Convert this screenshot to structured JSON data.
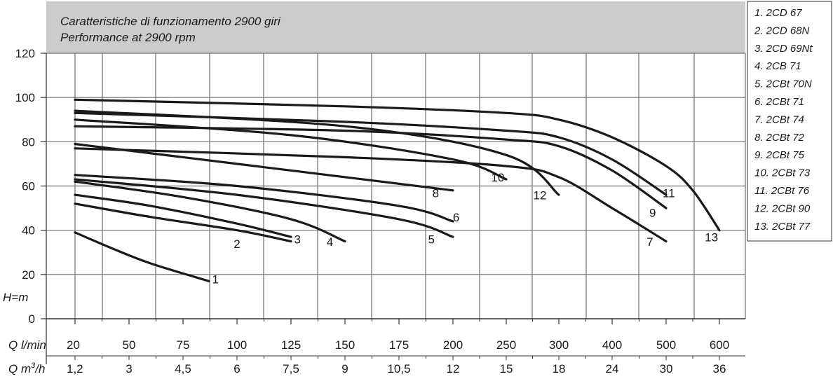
{
  "chart_data": {
    "type": "line",
    "title": "Caratteristiche di funzionamento 2900 giri",
    "subtitle": "Performance at 2900 rpm",
    "ylabel": "H=m",
    "ylim": [
      0,
      120
    ],
    "y_ticks": [
      "0",
      "20",
      "40",
      "60",
      "80",
      "100",
      "120"
    ],
    "x_axis_primary": {
      "label": "Q l/min",
      "ticks": [
        "20",
        "50",
        "75",
        "100",
        "125",
        "150",
        "175",
        "200",
        "250",
        "300",
        "400",
        "500",
        "600"
      ]
    },
    "x_axis_secondary": {
      "label_main": "Q m",
      "label_sup": "3",
      "label_tail": "/h",
      "ticks": [
        "1,2",
        "3",
        "4,5",
        "6",
        "7,5",
        "9",
        "10,5",
        "12",
        "15",
        "18",
        "24",
        "30",
        "36"
      ]
    },
    "legend_position": "right",
    "legend": [
      "1. 2CD 67",
      "2. 2CD 68N",
      "3. 2CD 69Nt",
      "4. 2CB 71",
      "5. 2CBt 70N",
      "6. 2CBt 71",
      "7. 2CBt 74",
      "8. 2CBt 72",
      "9. 2CBt 75",
      "10. 2CBt 73",
      "11. 2CBt 76",
      "12. 2CBt 90",
      "13. 2CBt 77"
    ],
    "x_unit_note": "x values are l/min, read on the non-linear primary axis",
    "series": [
      {
        "name": "1",
        "x": [
          20,
          40,
          60,
          87
        ],
        "y": [
          39,
          32,
          25,
          17
        ]
      },
      {
        "name": "2",
        "x": [
          20,
          60,
          100,
          125
        ],
        "y": [
          52,
          46,
          40,
          35
        ]
      },
      {
        "name": "3",
        "x": [
          20,
          60,
          100,
          125
        ],
        "y": [
          56,
          51,
          43,
          37
        ]
      },
      {
        "name": "4",
        "x": [
          20,
          75,
          125,
          150
        ],
        "y": [
          62,
          55,
          45,
          35
        ]
      },
      {
        "name": "5",
        "x": [
          20,
          100,
          175,
          200
        ],
        "y": [
          63,
          56,
          45,
          37
        ]
      },
      {
        "name": "6",
        "x": [
          20,
          100,
          175,
          200
        ],
        "y": [
          65,
          60,
          51,
          44
        ]
      },
      {
        "name": "7",
        "x": [
          20,
          150,
          250,
          300,
          400,
          500
        ],
        "y": [
          77,
          73,
          69,
          64,
          50,
          35
        ]
      },
      {
        "name": "8",
        "x": [
          20,
          100,
          175,
          200
        ],
        "y": [
          79,
          70,
          61,
          58
        ]
      },
      {
        "name": "9",
        "x": [
          20,
          150,
          250,
          300,
          400,
          500
        ],
        "y": [
          87,
          85,
          81,
          78,
          67,
          50
        ]
      },
      {
        "name": "10",
        "x": [
          20,
          125,
          200,
          250
        ],
        "y": [
          90,
          83,
          72,
          63
        ]
      },
      {
        "name": "11",
        "x": [
          20,
          150,
          250,
          300,
          400,
          500
        ],
        "y": [
          93,
          89,
          85,
          82,
          72,
          56
        ]
      },
      {
        "name": "12",
        "x": [
          20,
          150,
          250,
          300
        ],
        "y": [
          94,
          87,
          74,
          56
        ]
      },
      {
        "name": "13",
        "x": [
          20,
          150,
          250,
          300,
          400,
          500,
          550,
          600
        ],
        "y": [
          99,
          96,
          93,
          90,
          82,
          69,
          58,
          40
        ]
      }
    ],
    "curve_labels": [
      {
        "text": "1",
        "x": 90,
        "y": 16
      },
      {
        "text": "2",
        "x": 100,
        "y": 32
      },
      {
        "text": "3",
        "x": 128,
        "y": 34
      },
      {
        "text": "4",
        "x": 143,
        "y": 33
      },
      {
        "text": "5",
        "x": 190,
        "y": 34
      },
      {
        "text": "6",
        "x": 203,
        "y": 44
      },
      {
        "text": "7",
        "x": 470,
        "y": 33
      },
      {
        "text": "8",
        "x": 192,
        "y": 55
      },
      {
        "text": "9",
        "x": 475,
        "y": 46
      },
      {
        "text": "10",
        "x": 242,
        "y": 62
      },
      {
        "text": "11",
        "x": 505,
        "y": 55
      },
      {
        "text": "12",
        "x": 282,
        "y": 54
      },
      {
        "text": "13",
        "x": 585,
        "y": 35
      }
    ],
    "grid": true
  },
  "colors": {
    "header_bg": "#cbcccb",
    "grid": "#6e6e6e",
    "curve": "#1a1a1a"
  }
}
